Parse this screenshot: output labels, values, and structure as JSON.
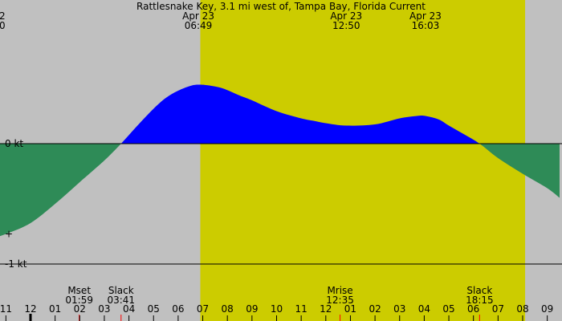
{
  "chart_data": {
    "type": "area",
    "title": "Rattlesnake Key, 3.1 mi west of, Tampa Bay, Florida Current",
    "ylim": [
      -1.07,
      1.2
    ],
    "colors": {
      "night_background": "#c0c0c0",
      "day_background": "#cccc00",
      "flood": "#0000ff",
      "ebb": "#2e8b57",
      "grid_lines": "#000000",
      "event_tick": "#ff0000"
    },
    "x_axis": {
      "ticks": [
        "11",
        "12",
        "01",
        "02",
        "03",
        "04",
        "05",
        "06",
        "07",
        "08",
        "09",
        "10",
        "11",
        "12",
        "01",
        "02",
        "03",
        "04",
        "05",
        "06",
        "07",
        "08",
        "09"
      ],
      "tick_hours": [
        -1,
        0,
        1,
        2,
        3,
        4,
        5,
        6,
        7,
        8,
        9,
        10,
        11,
        12,
        13,
        14,
        15,
        16,
        17,
        18,
        19,
        20,
        21
      ]
    },
    "y_labels": [
      {
        "text": "0 kt",
        "value": 0
      },
      {
        "text": "+",
        "value": -0.75
      },
      {
        "text": "-1 kt",
        "value": -1
      }
    ],
    "daylight": {
      "start_hour": 6.9,
      "end_hour": 20.1
    },
    "series": [
      {
        "kind": "current",
        "x_hours": [
          -2.0,
          -1.0,
          0.0,
          1.0,
          2.0,
          3.0,
          3.68,
          4.3,
          5.0,
          5.5,
          6.0,
          6.5,
          6.8,
          7.2,
          7.8,
          8.5,
          9.0,
          10.0,
          11.0,
          11.5,
          12.0,
          12.83,
          14.0,
          15.0,
          15.7,
          16.05,
          16.6,
          17.0,
          17.6,
          18.25,
          19.0,
          20.0,
          21.0,
          21.5
        ],
        "values": [
          -0.82,
          -0.75,
          -0.66,
          -0.5,
          -0.32,
          -0.14,
          0.0,
          0.14,
          0.29,
          0.38,
          0.44,
          0.48,
          0.49,
          0.485,
          0.46,
          0.4,
          0.36,
          0.27,
          0.21,
          0.19,
          0.17,
          0.15,
          0.16,
          0.21,
          0.23,
          0.23,
          0.2,
          0.15,
          0.08,
          0.0,
          -0.12,
          -0.25,
          -0.37,
          -0.45
        ]
      }
    ],
    "top_events": [
      {
        "date": "Apr 23",
        "time": "06:49",
        "hour": 6.82
      },
      {
        "date": "Apr 23",
        "time": "12:50",
        "hour": 12.83
      },
      {
        "date": "Apr 23",
        "time": "16:03",
        "hour": 16.05
      }
    ],
    "top_left_fragment": {
      "line1": "2",
      "line2": "0"
    },
    "bottom_events": [
      {
        "name": "Mset",
        "time": "01:59",
        "hour": 1.98
      },
      {
        "name": "Slack",
        "time": "03:41",
        "hour": 3.68
      },
      {
        "name": "Mrise",
        "time": "12:35",
        "hour": 12.58
      },
      {
        "name": "Slack",
        "time": "18:15",
        "hour": 18.25
      }
    ],
    "midnight_tick_hour": 0
  }
}
